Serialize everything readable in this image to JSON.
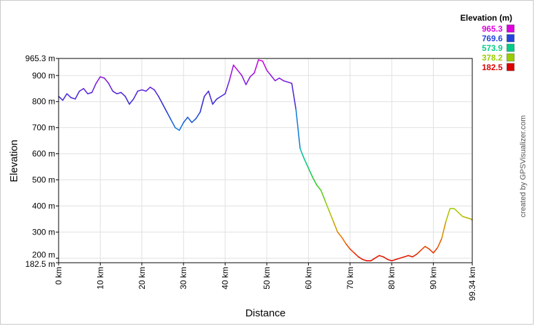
{
  "chart_data": {
    "type": "line",
    "title": "",
    "xlabel": "Distance",
    "ylabel": "Elevation",
    "xlim": [
      0,
      99.34
    ],
    "ylim": [
      182.5,
      965.3
    ],
    "grid": true,
    "x_ticks": [
      {
        "value": 0,
        "label": "0 km"
      },
      {
        "value": 10,
        "label": "10 km"
      },
      {
        "value": 20,
        "label": "20 km"
      },
      {
        "value": 30,
        "label": "30 km"
      },
      {
        "value": 40,
        "label": "40 km"
      },
      {
        "value": 50,
        "label": "50 km"
      },
      {
        "value": 60,
        "label": "60 km"
      },
      {
        "value": 70,
        "label": "70 km"
      },
      {
        "value": 80,
        "label": "80 km"
      },
      {
        "value": 90,
        "label": "90 km"
      },
      {
        "value": 99.34,
        "label": "99.34 km"
      }
    ],
    "y_ticks": [
      {
        "value": 182.5,
        "label": "182.5 m"
      },
      {
        "value": 200,
        "label": "200 m"
      },
      {
        "value": 300,
        "label": "300 m"
      },
      {
        "value": 400,
        "label": "400 m"
      },
      {
        "value": 500,
        "label": "500 m"
      },
      {
        "value": 600,
        "label": "600 m"
      },
      {
        "value": 700,
        "label": "700 m"
      },
      {
        "value": 800,
        "label": "800 m"
      },
      {
        "value": 900,
        "label": "900 m"
      },
      {
        "value": 965.3,
        "label": "965.3 m"
      }
    ],
    "legend": {
      "title": "Elevation (m)",
      "position": "top-right",
      "entries": [
        {
          "label": "965.3",
          "color": "#dd00dd"
        },
        {
          "label": "769.6",
          "color": "#2244dd"
        },
        {
          "label": "573.9",
          "color": "#00cc88"
        },
        {
          "label": "378.2",
          "color": "#99cc00"
        },
        {
          "label": "182.5",
          "color": "#dd0000"
        }
      ]
    },
    "color_scale": [
      {
        "value": 182.5,
        "color": "#dd0000"
      },
      {
        "value": 280,
        "color": "#ee7700"
      },
      {
        "value": 378.2,
        "color": "#aacc00"
      },
      {
        "value": 480,
        "color": "#33cc22"
      },
      {
        "value": 573.9,
        "color": "#00cc88"
      },
      {
        "value": 670,
        "color": "#1199dd"
      },
      {
        "value": 769.6,
        "color": "#2233cc"
      },
      {
        "value": 870,
        "color": "#7722dd"
      },
      {
        "value": 965.3,
        "color": "#dd00dd"
      }
    ],
    "credit": "created by GPSVisualizer.com",
    "series": [
      {
        "x": [
          0,
          1,
          2,
          3,
          4,
          5,
          6,
          7,
          8,
          9,
          10,
          11,
          12,
          13,
          14,
          15,
          16,
          17,
          18,
          19,
          20,
          21,
          22,
          23,
          24,
          25,
          26,
          27,
          28,
          29,
          30,
          31,
          32,
          33,
          34,
          35,
          36,
          37,
          38,
          39,
          40,
          41,
          42,
          43,
          44,
          45,
          46,
          47,
          48,
          49,
          50,
          51,
          52,
          53,
          54,
          55,
          56,
          57,
          58,
          59,
          60,
          61,
          62,
          63,
          64,
          65,
          66,
          67,
          68,
          69,
          70,
          71,
          72,
          73,
          74,
          75,
          76,
          77,
          78,
          79,
          80,
          81,
          82,
          83,
          84,
          85,
          86,
          87,
          88,
          89,
          90,
          91,
          92,
          93,
          94,
          95,
          96,
          97,
          98,
          99,
          99.34
        ],
        "y": [
          820,
          805,
          830,
          815,
          810,
          840,
          850,
          830,
          835,
          870,
          895,
          890,
          870,
          840,
          830,
          835,
          820,
          790,
          810,
          840,
          845,
          840,
          855,
          845,
          820,
          790,
          760,
          730,
          700,
          690,
          720,
          740,
          720,
          735,
          760,
          820,
          840,
          790,
          810,
          820,
          830,
          880,
          940,
          920,
          900,
          865,
          895,
          910,
          960,
          955,
          920,
          900,
          880,
          890,
          880,
          875,
          870,
          770,
          620,
          580,
          545,
          510,
          480,
          460,
          420,
          380,
          340,
          300,
          280,
          255,
          235,
          220,
          205,
          195,
          190,
          190,
          200,
          210,
          205,
          195,
          190,
          195,
          200,
          205,
          210,
          205,
          215,
          230,
          245,
          235,
          220,
          240,
          275,
          340,
          390,
          390,
          375,
          360,
          355,
          350,
          345
        ]
      }
    ]
  }
}
